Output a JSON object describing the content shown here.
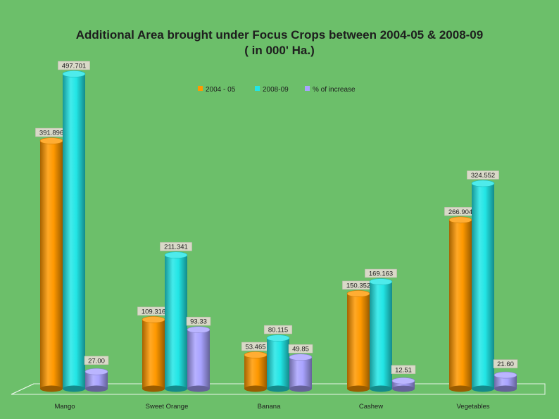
{
  "chart_data": {
    "type": "bar",
    "title": "Additional Area brought under Focus Crops between 2004-05 & 2008-09",
    "subtitle": "( in 000' Ha.)",
    "categories": [
      "Mango",
      "Sweet Orange",
      "Banana",
      "Cashew",
      "Vegetables"
    ],
    "series": [
      {
        "name": "2004 - 05",
        "color": "#ff9900",
        "values": [
          391.896,
          109.316,
          53.465,
          150.352,
          266.904
        ],
        "labels": [
          "391.896",
          "109.316",
          "53.465",
          "150.352",
          "266.904"
        ]
      },
      {
        "name": "2008-09",
        "color": "#22e6e6",
        "values": [
          497.701,
          211.341,
          80.115,
          169.163,
          324.552
        ],
        "labels": [
          "497.701",
          "211.341",
          "80.115",
          "169.163",
          "324.552"
        ]
      },
      {
        "name": "% of increase",
        "color": "#a9a3ff",
        "values": [
          27.0,
          93.33,
          49.85,
          12.51,
          21.6
        ],
        "labels": [
          "27.00",
          "93.33",
          "49.85",
          "12.51",
          "21.60"
        ]
      }
    ],
    "legend_position": "top",
    "grid": false
  }
}
